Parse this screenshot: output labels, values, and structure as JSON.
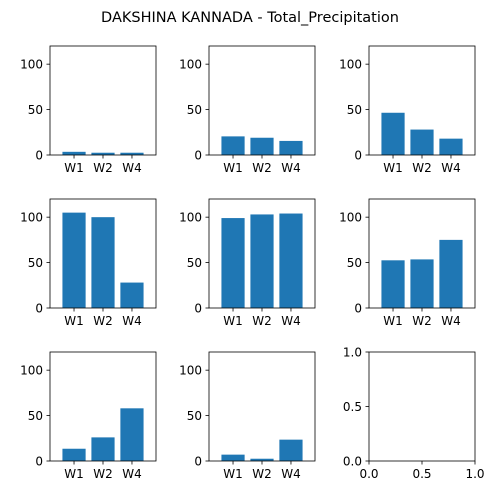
{
  "figure": {
    "title": "DAKSHINA KANNADA - Total_Precipitation"
  },
  "chart_data": [
    {
      "type": "bar",
      "categories": [
        "W1",
        "W2",
        "W4"
      ],
      "values": [
        3.5,
        2.5,
        2.5
      ],
      "ylim": [
        0,
        120
      ],
      "yticks": [
        0,
        50,
        100
      ],
      "color": "#1f77b4"
    },
    {
      "type": "bar",
      "categories": [
        "W1",
        "W2",
        "W4"
      ],
      "values": [
        20.5,
        19,
        15.5
      ],
      "ylim": [
        0,
        120
      ],
      "yticks": [
        0,
        50,
        100
      ],
      "color": "#1f77b4"
    },
    {
      "type": "bar",
      "categories": [
        "W1",
        "W2",
        "W4"
      ],
      "values": [
        46.5,
        28,
        18
      ],
      "ylim": [
        0,
        120
      ],
      "yticks": [
        0,
        50,
        100
      ],
      "color": "#1f77b4"
    },
    {
      "type": "bar",
      "categories": [
        "W1",
        "W2",
        "W4"
      ],
      "values": [
        105,
        100,
        28
      ],
      "ylim": [
        0,
        120
      ],
      "yticks": [
        0,
        50,
        100
      ],
      "color": "#1f77b4"
    },
    {
      "type": "bar",
      "categories": [
        "W1",
        "W2",
        "W4"
      ],
      "values": [
        99,
        103,
        104
      ],
      "ylim": [
        0,
        120
      ],
      "yticks": [
        0,
        50,
        100
      ],
      "color": "#1f77b4"
    },
    {
      "type": "bar",
      "categories": [
        "W1",
        "W2",
        "W4"
      ],
      "values": [
        52.5,
        53.5,
        75
      ],
      "ylim": [
        0,
        120
      ],
      "yticks": [
        0,
        50,
        100
      ],
      "color": "#1f77b4"
    },
    {
      "type": "bar",
      "categories": [
        "W1",
        "W2",
        "W4"
      ],
      "values": [
        13.5,
        26,
        58
      ],
      "ylim": [
        0,
        120
      ],
      "yticks": [
        0,
        50,
        100
      ],
      "color": "#1f77b4"
    },
    {
      "type": "bar",
      "categories": [
        "W1",
        "W2",
        "W4"
      ],
      "values": [
        7,
        2.5,
        23.5
      ],
      "ylim": [
        0,
        120
      ],
      "yticks": [
        0,
        50,
        100
      ],
      "color": "#1f77b4"
    },
    {
      "type": "empty",
      "xlim": [
        0,
        1
      ],
      "ylim": [
        0,
        1
      ],
      "xticks": [
        "0.0",
        "0.5",
        "1.0"
      ],
      "yticks": [
        "0.0",
        "0.5",
        "1.0"
      ]
    }
  ]
}
